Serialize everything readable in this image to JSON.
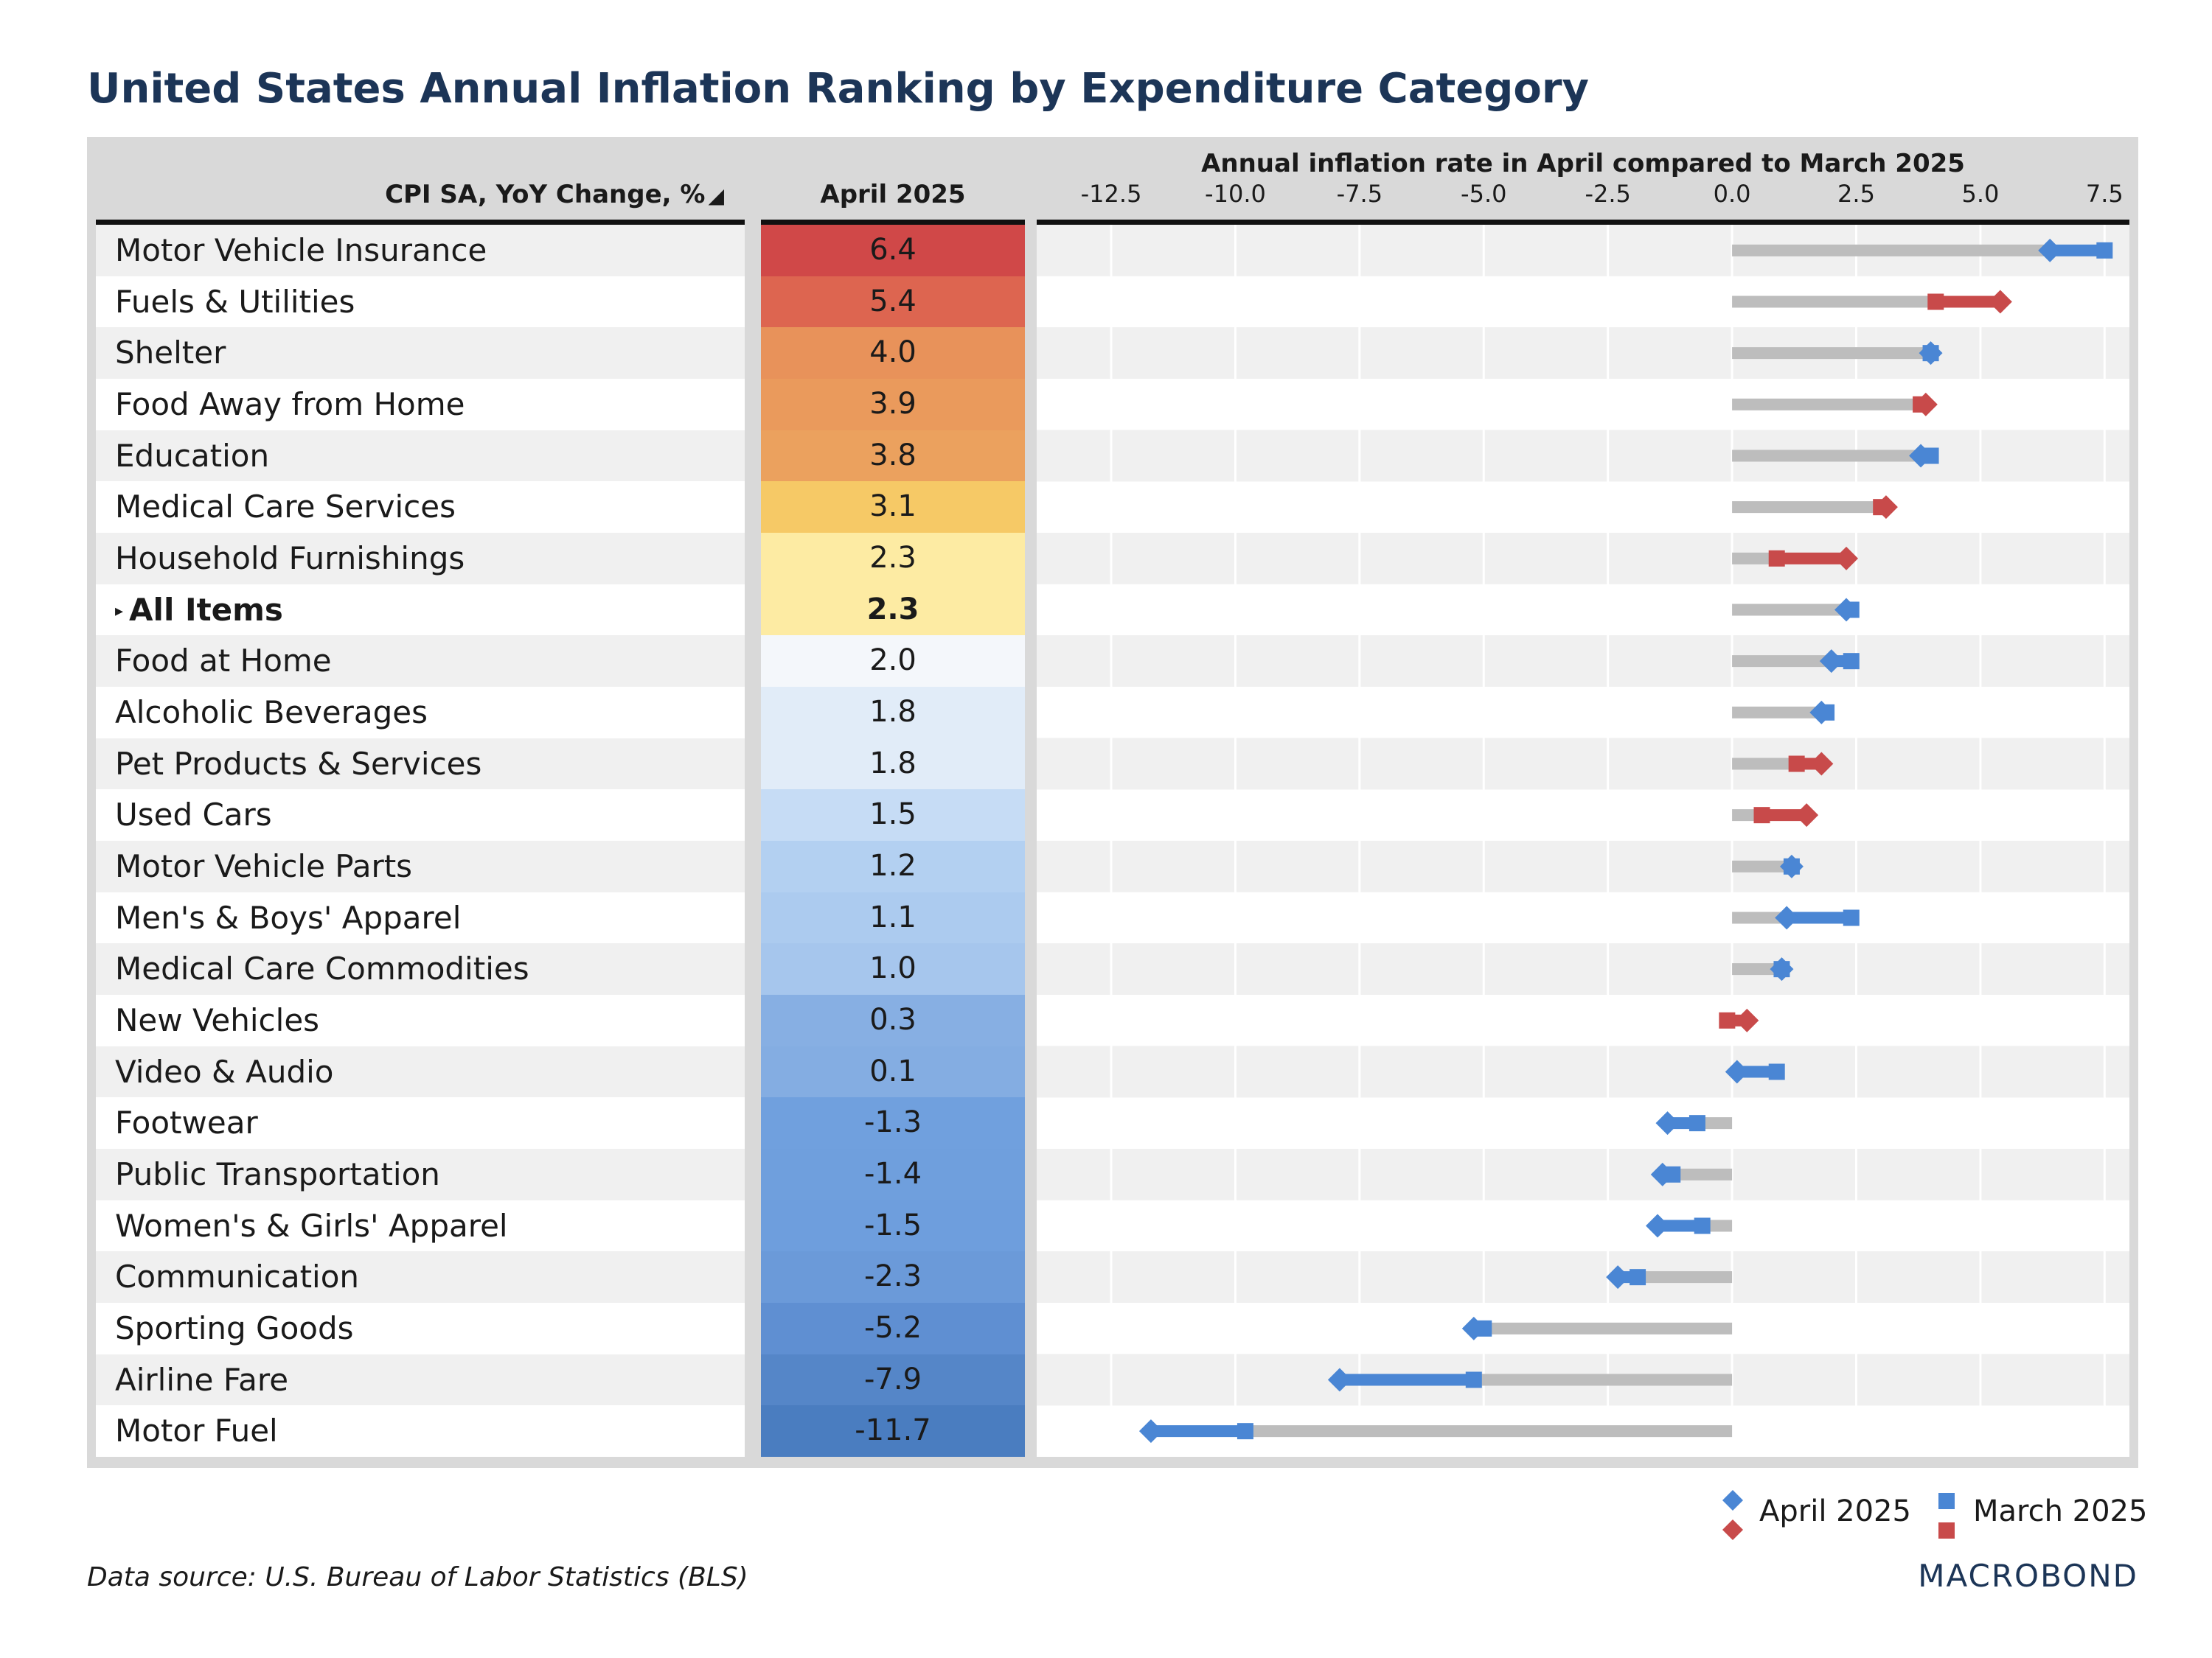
{
  "title": "United States Annual Inflation Ranking by Expenditure Category",
  "header": {
    "category": "CPI SA, YoY Change, %",
    "sort_icon": "sort-desc-triangle",
    "april": "April 2025",
    "chart": "Annual inflation rate in April compared to March 2025"
  },
  "colors": {
    "increase": "#c84a4a",
    "decrease": "#4a86d4",
    "unchanged_bar": "#bdbdbd",
    "title": "#1c3557"
  },
  "chart_data": {
    "type": "dumbbell",
    "title": "Annual inflation rate in April compared to March 2025",
    "xlim": [
      -14.0,
      8.0
    ],
    "ticks": [
      "-12.5",
      "-10.0",
      "-7.5",
      "-5.0",
      "-2.5",
      "0.0",
      "2.5",
      "5.0",
      "7.5"
    ],
    "tick_values": [
      -12.5,
      -10.0,
      -7.5,
      -5.0,
      -2.5,
      0.0,
      2.5,
      5.0,
      7.5
    ],
    "series": [
      {
        "name": "April 2025",
        "marker": "diamond"
      },
      {
        "name": "March 2025",
        "marker": "square"
      }
    ],
    "rows": [
      {
        "category": "Motor Vehicle Insurance",
        "april_label": "6.4",
        "april": 6.4,
        "march": 7.5,
        "heat": "#d04848"
      },
      {
        "category": "Fuels & Utilities",
        "april_label": "5.4",
        "april": 5.4,
        "march": 4.1,
        "heat": "#dd6550"
      },
      {
        "category": "Shelter",
        "april_label": "4.0",
        "april": 4.0,
        "march": 4.0,
        "heat": "#e8925a"
      },
      {
        "category": "Food Away from Home",
        "april_label": "3.9",
        "april": 3.9,
        "march": 3.8,
        "heat": "#ea9a5c"
      },
      {
        "category": "Education",
        "april_label": "3.8",
        "april": 3.8,
        "march": 4.0,
        "heat": "#eba15e"
      },
      {
        "category": "Medical Care Services",
        "april_label": "3.1",
        "april": 3.1,
        "march": 3.0,
        "heat": "#f6c966"
      },
      {
        "category": "Household Furnishings",
        "april_label": "2.3",
        "april": 2.3,
        "march": 0.9,
        "heat": "#fdeba3"
      },
      {
        "category": "All Items",
        "april_label": "2.3",
        "april": 2.3,
        "march": 2.4,
        "heat": "#fdeba3",
        "bold": true
      },
      {
        "category": "Food at Home",
        "april_label": "2.0",
        "april": 2.0,
        "march": 2.4,
        "heat": "#f4f7fb"
      },
      {
        "category": "Alcoholic Beverages",
        "april_label": "1.8",
        "april": 1.8,
        "march": 1.9,
        "heat": "#e1ecf8"
      },
      {
        "category": "Pet Products & Services",
        "april_label": "1.8",
        "april": 1.8,
        "march": 1.3,
        "heat": "#e1ecf8"
      },
      {
        "category": "Used Cars",
        "april_label": "1.5",
        "april": 1.5,
        "march": 0.6,
        "heat": "#c6dcf5"
      },
      {
        "category": "Motor Vehicle Parts",
        "april_label": "1.2",
        "april": 1.2,
        "march": 1.2,
        "heat": "#b3d0f1"
      },
      {
        "category": "Men's & Boys' Apparel",
        "april_label": "1.1",
        "april": 1.1,
        "march": 2.4,
        "heat": "#accbef"
      },
      {
        "category": "Medical Care Commodities",
        "april_label": "1.0",
        "april": 1.0,
        "march": 1.0,
        "heat": "#a6c6ed"
      },
      {
        "category": "New Vehicles",
        "april_label": "0.3",
        "april": 0.3,
        "march": -0.1,
        "heat": "#87afe3"
      },
      {
        "category": "Video & Audio",
        "april_label": "0.1",
        "april": 0.1,
        "march": 0.9,
        "heat": "#84ade2"
      },
      {
        "category": "Footwear",
        "april_label": "-1.3",
        "april": -1.3,
        "march": -0.7,
        "heat": "#70a0de"
      },
      {
        "category": "Public Transportation",
        "april_label": "-1.4",
        "april": -1.4,
        "march": -1.2,
        "heat": "#6f9fdd"
      },
      {
        "category": "Women's & Girls' Apparel",
        "april_label": "-1.5",
        "april": -1.5,
        "march": -0.6,
        "heat": "#6e9edd"
      },
      {
        "category": "Communication",
        "april_label": "-2.3",
        "april": -2.3,
        "march": -1.9,
        "heat": "#6b9ad9"
      },
      {
        "category": "Sporting Goods",
        "april_label": "-5.2",
        "april": -5.2,
        "march": -5.0,
        "heat": "#5f8fd2"
      },
      {
        "category": "Airline Fare",
        "april_label": "-7.9",
        "april": -7.9,
        "march": -5.2,
        "heat": "#5586c8"
      },
      {
        "category": "Motor Fuel",
        "april_label": "-11.7",
        "april": -11.7,
        "march": -9.8,
        "heat": "#4a7dc0"
      }
    ]
  },
  "legend": {
    "april": "April 2025",
    "march": "March 2025"
  },
  "source": "Data source: U.S. Bureau of Labor Statistics (BLS)",
  "logo": "MACROBOND"
}
